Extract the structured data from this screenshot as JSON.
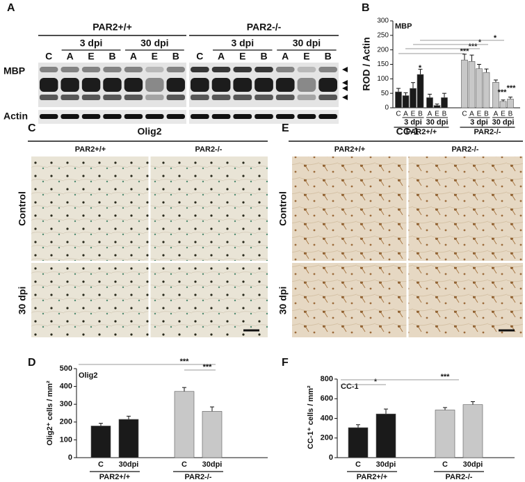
{
  "panel_labels": [
    "A",
    "B",
    "C",
    "D",
    "E",
    "F"
  ],
  "blot": {
    "groups": [
      "PAR2+/+",
      "PAR2-/-"
    ],
    "timepoints": [
      "3 dpi",
      "30 dpi"
    ],
    "lanes": [
      "C",
      "A",
      "E",
      "B",
      "A",
      "E",
      "B"
    ],
    "rows": [
      "MBP",
      "Actin"
    ]
  },
  "micrographs": [
    {
      "title": "Olig2",
      "columns": [
        "PAR2+/+",
        "PAR2-/-"
      ],
      "rows": [
        "Control",
        "30 dpi"
      ]
    },
    {
      "title": "CC-1",
      "columns": [
        "PAR2+/+",
        "PAR2-/-"
      ],
      "rows": [
        "Control",
        "30 dpi"
      ]
    }
  ],
  "chart_data": [
    {
      "type": "bar",
      "title": "MBP",
      "y_label": "ROD / Actin",
      "categories": [
        "C",
        "A",
        "E",
        "B",
        "A",
        "E",
        "B"
      ],
      "subgroups": [
        "3 dpi",
        "30 dpi"
      ],
      "series": [
        {
          "name": "PAR2+/+",
          "color": "#1a1a1a",
          "values": [
            55,
            42,
            67,
            115,
            35,
            8,
            35
          ],
          "errors": [
            12,
            10,
            20,
            18,
            12,
            5,
            15
          ]
        },
        {
          "name": "PAR2-/-",
          "color": "#c8c8c8",
          "values": [
            165,
            160,
            135,
            122,
            88,
            22,
            30
          ],
          "errors": [
            20,
            22,
            15,
            12,
            8,
            5,
            7
          ]
        }
      ],
      "ylim": [
        0,
        300
      ],
      "yticks": [
        0,
        50,
        100,
        150,
        200,
        250,
        300
      ],
      "annotations": [
        "*",
        "***",
        "***",
        "*",
        "*",
        "***",
        "***"
      ]
    },
    {
      "type": "bar",
      "title": "Olig2",
      "y_label": "Olig2⁺ cells / mm²",
      "categories": [
        "C",
        "30dpi"
      ],
      "series": [
        {
          "name": "PAR2+/+",
          "color": "#1a1a1a",
          "values": [
            178,
            215
          ],
          "errors": [
            15,
            18
          ]
        },
        {
          "name": "PAR2-/-",
          "color": "#c8c8c8",
          "values": [
            372,
            260
          ],
          "errors": [
            22,
            25
          ]
        }
      ],
      "ylim": [
        0,
        500
      ],
      "yticks": [
        0,
        100,
        200,
        300,
        400,
        500
      ],
      "annotations": [
        "***",
        "***"
      ]
    },
    {
      "type": "bar",
      "title": "CC-1",
      "y_label": "CC-1⁺ cells / mm²",
      "categories": [
        "C",
        "30dpi"
      ],
      "series": [
        {
          "name": "PAR2+/+",
          "color": "#1a1a1a",
          "values": [
            305,
            445
          ],
          "errors": [
            30,
            50
          ]
        },
        {
          "name": "PAR2-/-",
          "color": "#c8c8c8",
          "values": [
            485,
            540
          ],
          "errors": [
            25,
            30
          ]
        }
      ],
      "ylim": [
        0,
        800
      ],
      "yticks": [
        0,
        200,
        400,
        600,
        800
      ],
      "annotations": [
        "*",
        "***"
      ]
    }
  ]
}
